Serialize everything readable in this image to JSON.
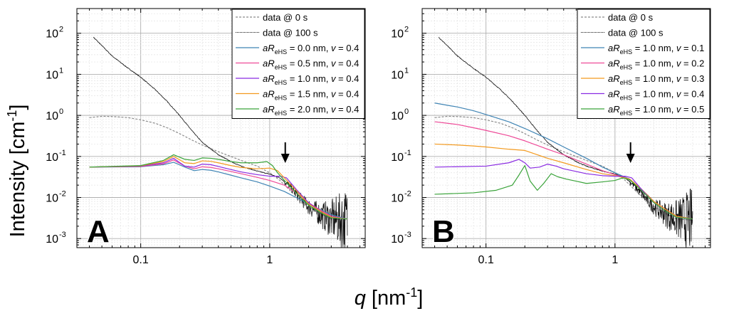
{
  "figure": {
    "ylabel": "Intensity [cm",
    "ylabel_sup": "-1",
    "ylabel_close": "]",
    "xlabel_var": "q",
    "xlabel_unit": " [nm",
    "xlabel_sup": "-1",
    "xlabel_close": "]"
  },
  "chart_data": [
    {
      "type": "line",
      "panel_label": "A",
      "xscale": "log",
      "yscale": "log",
      "xlim": [
        0.032,
        5.5
      ],
      "ylim": [
        0.0006,
        400
      ],
      "grid": true,
      "legend_position": "top-right",
      "x_ticks": [
        {
          "v": 0.1,
          "label": "0.1"
        },
        {
          "v": 1,
          "label": "1"
        }
      ],
      "y_ticks": [
        {
          "v": 0.001,
          "base": "10",
          "exp": "-3"
        },
        {
          "v": 0.01,
          "base": "10",
          "exp": "-2"
        },
        {
          "v": 0.1,
          "base": "10",
          "exp": "-1"
        },
        {
          "v": 1,
          "base": "10",
          "exp": "0"
        },
        {
          "v": 10,
          "base": "10",
          "exp": "1"
        },
        {
          "v": 100,
          "base": "10",
          "exp": "2"
        }
      ],
      "arrow_q": 1.32,
      "series": [
        {
          "name": "data @ 0 s",
          "legend": [
            "data @ 0 s"
          ],
          "color": "#8c8c8c",
          "style": "dashed",
          "x": [
            0.04,
            0.05,
            0.06,
            0.08,
            0.1,
            0.13,
            0.16,
            0.2,
            0.25,
            0.3,
            0.4,
            0.5,
            0.6,
            0.8,
            1.0,
            1.2,
            1.5,
            2.0,
            2.5,
            3.0,
            4.0
          ],
          "y": [
            0.88,
            0.95,
            0.94,
            0.88,
            0.78,
            0.64,
            0.5,
            0.36,
            0.25,
            0.19,
            0.13,
            0.1,
            0.08,
            0.058,
            0.04,
            0.026,
            0.013,
            0.006,
            0.004,
            0.003,
            0.0028
          ]
        },
        {
          "name": "data @ 100 s",
          "legend": [
            "data @ 100 s"
          ],
          "color": "#111111",
          "style": "noisy",
          "x": [
            0.043,
            0.05,
            0.06,
            0.08,
            0.1,
            0.13,
            0.16,
            0.2,
            0.25,
            0.3,
            0.4,
            0.5,
            0.6,
            0.8,
            1.0,
            1.2,
            1.4,
            1.7,
            2.0,
            2.5,
            3.0,
            3.5,
            4.0
          ],
          "y": [
            80,
            50,
            28,
            14,
            8.5,
            4.2,
            2.2,
            1.0,
            0.42,
            0.22,
            0.11,
            0.075,
            0.058,
            0.044,
            0.037,
            0.03,
            0.02,
            0.01,
            0.006,
            0.0038,
            0.003,
            0.0028,
            0.0027
          ]
        },
        {
          "name": "aR_eHS = 0.0 nm, v = 0.4",
          "legend": [
            "aR",
            "eHS",
            " = 0.0 nm, ",
            "v",
            " = 0.4"
          ],
          "color": "#3f84b4",
          "style": "solid",
          "x": [
            0.04,
            0.1,
            0.15,
            0.18,
            0.22,
            0.26,
            0.3,
            0.35,
            0.4,
            0.5,
            0.6,
            0.8,
            1.0,
            1.3,
            1.6,
            2.0,
            2.5,
            3.0,
            4.0
          ],
          "y": [
            0.055,
            0.056,
            0.063,
            0.072,
            0.055,
            0.045,
            0.048,
            0.046,
            0.042,
            0.035,
            0.03,
            0.024,
            0.019,
            0.014,
            0.01,
            0.007,
            0.005,
            0.0038,
            0.003
          ]
        },
        {
          "name": "aR_eHS = 0.5 nm, v = 0.4",
          "legend": [
            "aR",
            "eHS",
            " = 0.5 nm, ",
            "v",
            " = 0.4"
          ],
          "color": "#ee4a98",
          "style": "solid",
          "x": [
            0.04,
            0.1,
            0.15,
            0.18,
            0.22,
            0.26,
            0.3,
            0.35,
            0.4,
            0.5,
            0.6,
            0.8,
            1.0,
            1.3,
            1.6,
            2.0,
            2.5,
            3.0,
            4.0
          ],
          "y": [
            0.055,
            0.057,
            0.066,
            0.082,
            0.058,
            0.05,
            0.056,
            0.054,
            0.05,
            0.043,
            0.038,
            0.031,
            0.026,
            0.02,
            0.013,
            0.0075,
            0.0048,
            0.0035,
            0.003
          ]
        },
        {
          "name": "aR_eHS = 1.0 nm, v = 0.4",
          "legend": [
            "aR",
            "eHS",
            " = 1.0 nm, ",
            "v",
            " = 0.4"
          ],
          "color": "#8a2be2",
          "style": "solid",
          "x": [
            0.04,
            0.1,
            0.15,
            0.18,
            0.22,
            0.26,
            0.3,
            0.35,
            0.4,
            0.5,
            0.6,
            0.8,
            1.0,
            1.2,
            1.35,
            1.6,
            2.0,
            2.5,
            3.0,
            4.0
          ],
          "y": [
            0.055,
            0.058,
            0.07,
            0.09,
            0.058,
            0.055,
            0.065,
            0.063,
            0.057,
            0.048,
            0.042,
            0.036,
            0.033,
            0.033,
            0.03,
            0.016,
            0.0075,
            0.0045,
            0.0033,
            0.003
          ]
        },
        {
          "name": "aR_eHS = 1.5 nm, v = 0.4",
          "legend": [
            "aR",
            "eHS",
            " = 1.5 nm, ",
            "v",
            " = 0.4"
          ],
          "color": "#f39a1f",
          "style": "solid",
          "x": [
            0.04,
            0.1,
            0.15,
            0.18,
            0.22,
            0.26,
            0.3,
            0.35,
            0.4,
            0.5,
            0.6,
            0.8,
            1.0,
            1.15,
            1.3,
            1.6,
            2.0,
            2.5,
            3.0,
            4.0
          ],
          "y": [
            0.055,
            0.059,
            0.075,
            0.1,
            0.07,
            0.067,
            0.078,
            0.076,
            0.07,
            0.06,
            0.054,
            0.05,
            0.052,
            0.045,
            0.03,
            0.015,
            0.007,
            0.0045,
            0.0033,
            0.003
          ]
        },
        {
          "name": "aR_eHS = 2.0 nm, v = 0.4",
          "legend": [
            "aR",
            "eHS",
            " = 2.0 nm, ",
            "v",
            " = 0.4"
          ],
          "color": "#3aa33a",
          "style": "solid",
          "x": [
            0.04,
            0.1,
            0.15,
            0.18,
            0.22,
            0.26,
            0.3,
            0.35,
            0.4,
            0.5,
            0.6,
            0.8,
            0.95,
            1.05,
            1.15,
            1.3,
            1.6,
            2.0,
            2.5,
            3.0,
            4.0
          ],
          "y": [
            0.055,
            0.06,
            0.08,
            0.11,
            0.085,
            0.08,
            0.092,
            0.09,
            0.085,
            0.075,
            0.07,
            0.07,
            0.075,
            0.06,
            0.04,
            0.026,
            0.013,
            0.0065,
            0.0042,
            0.0032,
            0.003
          ]
        }
      ]
    },
    {
      "type": "line",
      "panel_label": "B",
      "xscale": "log",
      "yscale": "log",
      "xlim": [
        0.032,
        5.5
      ],
      "ylim": [
        0.0006,
        400
      ],
      "grid": true,
      "legend_position": "top-right",
      "x_ticks": [
        {
          "v": 0.1,
          "label": "0.1"
        },
        {
          "v": 1,
          "label": "1"
        }
      ],
      "y_ticks": [
        {
          "v": 0.001,
          "base": "10",
          "exp": "-3"
        },
        {
          "v": 0.01,
          "base": "10",
          "exp": "-2"
        },
        {
          "v": 0.1,
          "base": "10",
          "exp": "-1"
        },
        {
          "v": 1,
          "base": "10",
          "exp": "0"
        },
        {
          "v": 10,
          "base": "10",
          "exp": "1"
        },
        {
          "v": 100,
          "base": "10",
          "exp": "2"
        }
      ],
      "arrow_q": 1.32,
      "series": [
        {
          "name": "data @ 0 s",
          "legend": [
            "data @ 0 s"
          ],
          "color": "#8c8c8c",
          "style": "dashed",
          "x": [
            0.04,
            0.05,
            0.06,
            0.08,
            0.1,
            0.13,
            0.16,
            0.2,
            0.25,
            0.3,
            0.4,
            0.5,
            0.6,
            0.8,
            1.0,
            1.2,
            1.5,
            2.0,
            2.5,
            3.0,
            4.0
          ],
          "y": [
            0.88,
            0.95,
            0.94,
            0.88,
            0.78,
            0.64,
            0.5,
            0.36,
            0.25,
            0.19,
            0.13,
            0.1,
            0.08,
            0.058,
            0.04,
            0.026,
            0.013,
            0.006,
            0.004,
            0.003,
            0.0028
          ]
        },
        {
          "name": "data @ 100 s",
          "legend": [
            "data @ 100 s"
          ],
          "color": "#111111",
          "style": "noisy",
          "x": [
            0.043,
            0.05,
            0.06,
            0.08,
            0.1,
            0.13,
            0.16,
            0.2,
            0.25,
            0.3,
            0.4,
            0.5,
            0.6,
            0.8,
            1.0,
            1.2,
            1.4,
            1.7,
            2.0,
            2.5,
            3.0,
            3.5,
            4.0
          ],
          "y": [
            80,
            50,
            28,
            14,
            8.5,
            4.2,
            2.2,
            1.0,
            0.42,
            0.22,
            0.11,
            0.075,
            0.058,
            0.044,
            0.037,
            0.03,
            0.02,
            0.01,
            0.006,
            0.0038,
            0.003,
            0.0028,
            0.0027
          ]
        },
        {
          "name": "aR_eHS = 1.0 nm, v = 0.1",
          "legend": [
            "aR",
            "eHS",
            " = 1.0 nm, ",
            "v",
            " = 0.1"
          ],
          "color": "#3f84b4",
          "style": "solid",
          "x": [
            0.04,
            0.06,
            0.08,
            0.1,
            0.15,
            0.2,
            0.3,
            0.4,
            0.6,
            0.8,
            1.0,
            1.3,
            1.6,
            2.0,
            2.5,
            3.0,
            4.0
          ],
          "y": [
            2.0,
            1.6,
            1.3,
            1.05,
            0.7,
            0.48,
            0.27,
            0.17,
            0.09,
            0.055,
            0.04,
            0.028,
            0.016,
            0.008,
            0.005,
            0.0035,
            0.003
          ]
        },
        {
          "name": "aR_eHS = 1.0 nm, v = 0.2",
          "legend": [
            "aR",
            "eHS",
            " = 1.0 nm, ",
            "v",
            " = 0.2"
          ],
          "color": "#ee4a98",
          "style": "solid",
          "x": [
            0.04,
            0.06,
            0.08,
            0.1,
            0.15,
            0.2,
            0.3,
            0.4,
            0.6,
            0.8,
            1.0,
            1.3,
            1.6,
            2.0,
            2.5,
            3.0,
            4.0
          ],
          "y": [
            0.7,
            0.6,
            0.5,
            0.43,
            0.32,
            0.24,
            0.15,
            0.11,
            0.065,
            0.045,
            0.036,
            0.028,
            0.016,
            0.008,
            0.005,
            0.0035,
            0.003
          ]
        },
        {
          "name": "aR_eHS = 1.0 nm, v = 0.3",
          "legend": [
            "aR",
            "eHS",
            " = 1.0 nm, ",
            "v",
            " = 0.3"
          ],
          "color": "#f39a1f",
          "style": "solid",
          "x": [
            0.04,
            0.06,
            0.08,
            0.1,
            0.15,
            0.2,
            0.25,
            0.3,
            0.4,
            0.6,
            0.8,
            1.0,
            1.3,
            1.6,
            2.0,
            2.5,
            3.0,
            4.0
          ],
          "y": [
            0.2,
            0.19,
            0.18,
            0.17,
            0.15,
            0.14,
            0.11,
            0.09,
            0.07,
            0.048,
            0.038,
            0.034,
            0.028,
            0.016,
            0.008,
            0.005,
            0.0035,
            0.003
          ]
        },
        {
          "name": "aR_eHS = 1.0 nm, v = 0.4",
          "legend": [
            "aR",
            "eHS",
            " = 1.0 nm, ",
            "v",
            " = 0.4"
          ],
          "color": "#8a2be2",
          "style": "solid",
          "x": [
            0.04,
            0.1,
            0.15,
            0.18,
            0.2,
            0.22,
            0.26,
            0.3,
            0.35,
            0.4,
            0.5,
            0.6,
            0.8,
            1.0,
            1.2,
            1.35,
            1.6,
            2.0,
            2.5,
            3.0,
            4.0
          ],
          "y": [
            0.055,
            0.058,
            0.07,
            0.085,
            0.07,
            0.052,
            0.055,
            0.065,
            0.058,
            0.05,
            0.043,
            0.038,
            0.034,
            0.033,
            0.033,
            0.03,
            0.016,
            0.0075,
            0.0045,
            0.0033,
            0.003
          ]
        },
        {
          "name": "aR_eHS = 1.0 nm, v = 0.5",
          "legend": [
            "aR",
            "eHS",
            " = 1.0 nm, ",
            "v",
            " = 0.5"
          ],
          "color": "#3aa33a",
          "style": "solid",
          "x": [
            0.04,
            0.08,
            0.12,
            0.16,
            0.18,
            0.2,
            0.22,
            0.25,
            0.28,
            0.32,
            0.36,
            0.42,
            0.5,
            0.6,
            0.8,
            1.0,
            1.15,
            1.3,
            1.6,
            2.0,
            2.5,
            3.0,
            4.0
          ],
          "y": [
            0.012,
            0.013,
            0.015,
            0.02,
            0.035,
            0.06,
            0.025,
            0.015,
            0.022,
            0.038,
            0.032,
            0.028,
            0.025,
            0.022,
            0.024,
            0.026,
            0.03,
            0.027,
            0.015,
            0.0075,
            0.0045,
            0.0033,
            0.003
          ]
        }
      ]
    }
  ]
}
